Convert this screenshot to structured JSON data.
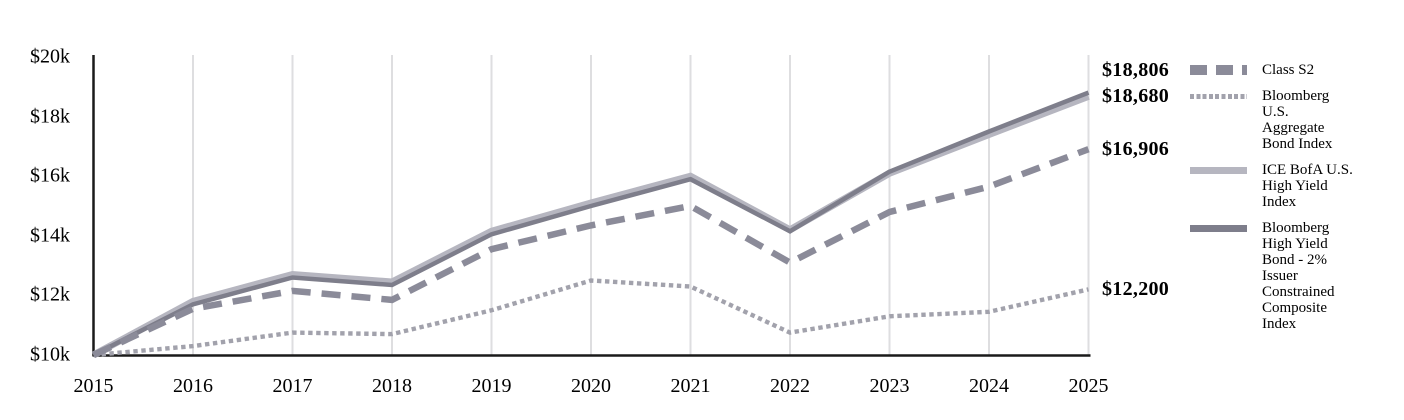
{
  "chart_data": {
    "type": "line",
    "x": [
      2015,
      2016,
      2017,
      2018,
      2019,
      2020,
      2021,
      2022,
      2023,
      2024,
      2025
    ],
    "ylim": [
      10000,
      20000
    ],
    "ytick_values": [
      10000,
      12000,
      14000,
      16000,
      18000,
      20000
    ],
    "ytick_labels": [
      "$10k",
      "$12k",
      "$14k",
      "$16k",
      "$18k",
      "$20k"
    ],
    "grid": "vertical-only",
    "legend_position": "right",
    "colors": {
      "axis": "#1a1a1a",
      "gridline": "#dedee0"
    },
    "series": [
      {
        "id": "class-s2",
        "name": "Class S2",
        "label_lines": [
          "Class S2"
        ],
        "style": "dashed",
        "color": "#8b8b99",
        "end_label": "$16,906",
        "values": [
          10000,
          11550,
          12150,
          11850,
          13550,
          14350,
          15000,
          13100,
          14800,
          15650,
          16906
        ]
      },
      {
        "id": "bloomberg-us-aggregate-bond-index",
        "name": "Bloomberg U.S. Aggregate Bond Index",
        "label_lines": [
          "Bloomberg",
          "U.S.",
          "Aggregate",
          "Bond Index"
        ],
        "style": "dotted",
        "color": "#a2a2ac",
        "end_label": "$12,200",
        "values": [
          10000,
          10300,
          10750,
          10700,
          11500,
          12500,
          12300,
          10750,
          11300,
          11450,
          12200
        ]
      },
      {
        "id": "ice-bofa-us-high-yield-index",
        "name": "ICE BofA U.S. High Yield Index",
        "label_lines": [
          "ICE BofA U.S.",
          "High Yield",
          "Index"
        ],
        "style": "solid",
        "color": "#b6b6c0",
        "end_label": "$18,680",
        "values": [
          10000,
          11800,
          12700,
          12450,
          14150,
          15100,
          16000,
          14200,
          16100,
          17400,
          18680
        ]
      },
      {
        "id": "bloomberg-high-yield-bond-2pct-issuer-constrained-composite-index",
        "name": "Bloomberg High Yield Bond - 2% Issuer Constrained Composite Index",
        "label_lines": [
          "Bloomberg",
          "High Yield",
          "Bond - 2%",
          "Issuer",
          "Constrained",
          "Composite",
          "Index"
        ],
        "style": "solid",
        "color": "#7e7e8b",
        "end_label": "$18,806",
        "values": [
          10000,
          11700,
          12600,
          12350,
          14050,
          15000,
          15900,
          14150,
          16150,
          17500,
          18806
        ]
      }
    ]
  }
}
